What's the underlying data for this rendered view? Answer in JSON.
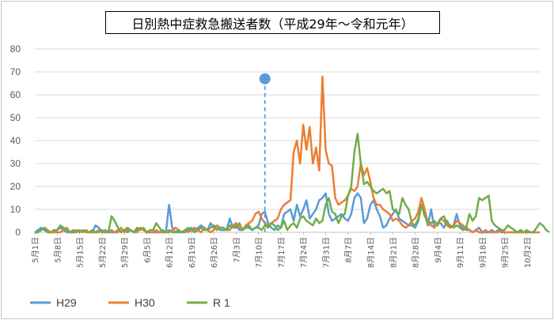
{
  "chart_data": {
    "type": "line",
    "title": "日別熱中症救急搬送者数（平成29年～令和元年）",
    "xlabel": "",
    "ylabel": "",
    "ylim": [
      0,
      80
    ],
    "y_ticks": [
      "0",
      "10",
      "20",
      "30",
      "40",
      "50",
      "60",
      "70",
      "80"
    ],
    "grid": true,
    "legend_position": "bottom-left",
    "x_start": "5月1日",
    "x_end": "10月6日",
    "x_tick_labels": [
      "5月1日",
      "5月8日",
      "5月15日",
      "5月22日",
      "5月29日",
      "6月5日",
      "6月12日",
      "6月19日",
      "6月26日",
      "7月3日",
      "7月10日",
      "7月17日",
      "7月24日",
      "7月31日",
      "8月7日",
      "8月14日",
      "8月21日",
      "8月28日",
      "9月4日",
      "9月11日",
      "9月18日",
      "9月25日",
      "10月2日"
    ],
    "marker": {
      "date": "7月12日",
      "value": 67
    },
    "series": [
      {
        "name": "H29",
        "color": "#5b9bd5",
        "values": [
          0,
          1,
          2,
          1,
          0,
          0,
          0,
          1,
          2,
          1,
          0,
          0,
          1,
          0,
          1,
          0,
          1,
          0,
          0,
          3,
          2,
          0,
          1,
          0,
          0,
          0,
          1,
          0,
          1,
          0,
          1,
          0,
          1,
          2,
          1,
          0,
          0,
          0,
          0,
          0,
          1,
          0,
          12,
          2,
          0,
          0,
          0,
          0,
          1,
          2,
          1,
          2,
          3,
          2,
          1,
          4,
          2,
          3,
          1,
          1,
          1,
          6,
          2,
          3,
          1,
          1,
          2,
          2,
          1,
          2,
          3,
          8,
          9,
          4,
          2,
          1,
          3,
          2,
          8,
          9,
          10,
          5,
          12,
          7,
          10,
          14,
          6,
          8,
          10,
          14,
          15,
          17,
          8,
          5,
          6,
          7,
          8,
          6,
          5,
          8,
          15,
          17,
          15,
          4,
          6,
          12,
          14,
          10,
          7,
          2,
          3,
          6,
          8,
          10,
          6,
          5,
          4,
          3,
          3,
          2,
          5,
          12,
          8,
          3,
          10,
          2,
          4,
          4,
          2,
          5,
          2,
          3,
          8,
          3,
          2,
          1,
          1,
          0,
          1,
          2,
          0,
          0,
          0,
          1,
          0,
          1,
          0,
          0,
          0,
          0,
          0,
          0,
          0,
          0,
          0,
          0,
          0,
          0
        ]
      },
      {
        "name": "H30",
        "color": "#ed7d31",
        "values": [
          0,
          0,
          1,
          2,
          1,
          0,
          0,
          0,
          0,
          1,
          2,
          0,
          0,
          0,
          1,
          0,
          1,
          0,
          0,
          0,
          1,
          0,
          0,
          0,
          1,
          0,
          0,
          2,
          0,
          1,
          1,
          0,
          0,
          2,
          1,
          0,
          0,
          0,
          1,
          0,
          0,
          0,
          0,
          1,
          2,
          1,
          0,
          1,
          0,
          1,
          2,
          1,
          0,
          2,
          1,
          0,
          1,
          3,
          2,
          2,
          1,
          1,
          3,
          4,
          2,
          1,
          3,
          4,
          5,
          8,
          9,
          6,
          4,
          3,
          4,
          5,
          6,
          10,
          12,
          13,
          14,
          35,
          40,
          30,
          47,
          36,
          46,
          30,
          37,
          27,
          68,
          36,
          30,
          29,
          15,
          12,
          13,
          14,
          16,
          19,
          18,
          20,
          30,
          25,
          28,
          22,
          15,
          12,
          12,
          10,
          9,
          8,
          5,
          6,
          5,
          3,
          2,
          3,
          5,
          6,
          9,
          15,
          10,
          4,
          3,
          2,
          4,
          6,
          5,
          3,
          2,
          3,
          5,
          4,
          3,
          2,
          1,
          0,
          1,
          0,
          0,
          1,
          0,
          0,
          0,
          0,
          1,
          0,
          0,
          0,
          0,
          0,
          0,
          0,
          0,
          0,
          0,
          0,
          0
        ]
      },
      {
        "name": "R 1",
        "color": "#70ad47",
        "values": [
          0,
          0,
          1,
          2,
          0,
          0,
          1,
          1,
          3,
          2,
          1,
          0,
          0,
          1,
          0,
          1,
          0,
          0,
          1,
          0,
          0,
          1,
          0,
          0,
          7,
          5,
          2,
          0,
          1,
          2,
          1,
          0,
          2,
          1,
          2,
          0,
          1,
          1,
          4,
          2,
          0,
          0,
          1,
          0,
          0,
          1,
          0,
          1,
          2,
          1,
          0,
          1,
          2,
          1,
          1,
          2,
          3,
          1,
          2,
          2,
          1,
          3,
          2,
          2,
          4,
          1,
          2,
          3,
          1,
          2,
          2,
          1,
          3,
          2,
          4,
          3,
          1,
          2,
          5,
          1,
          3,
          4,
          2,
          6,
          7,
          5,
          4,
          3,
          6,
          4,
          5,
          12,
          15,
          9,
          8,
          4,
          7,
          8,
          16,
          20,
          35,
          43,
          30,
          21,
          22,
          20,
          18,
          17,
          18,
          19,
          17,
          18,
          10,
          9,
          8,
          15,
          12,
          10,
          4,
          3,
          6,
          12,
          7,
          5,
          4,
          5,
          3,
          6,
          7,
          4,
          3,
          2,
          3,
          2,
          1,
          2,
          8,
          5,
          7,
          15,
          14,
          15,
          16,
          5,
          3,
          2,
          1,
          1,
          3,
          2,
          1,
          0,
          1,
          0,
          1,
          0,
          0,
          2,
          4,
          3,
          1,
          0
        ]
      }
    ]
  }
}
